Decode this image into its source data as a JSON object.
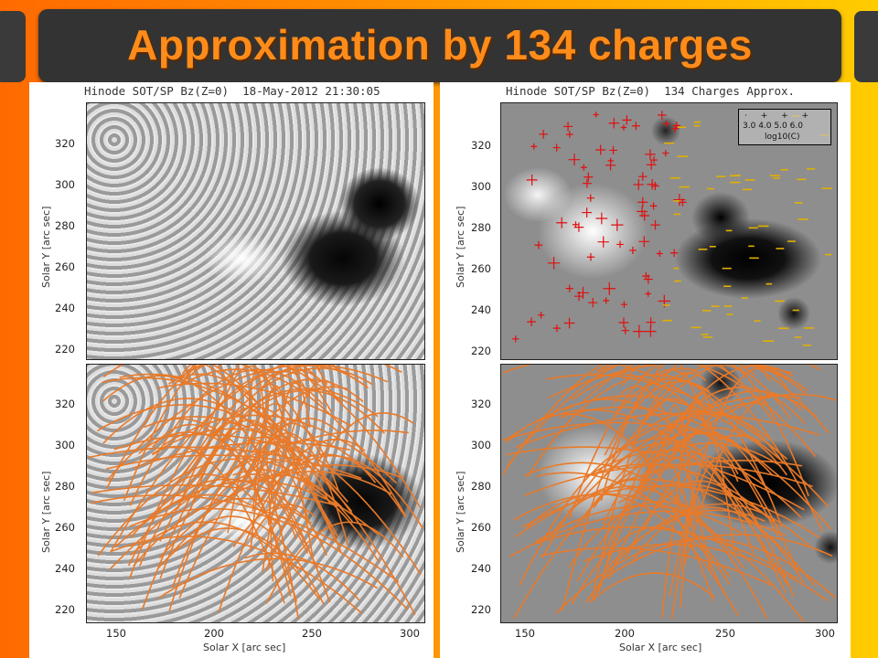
{
  "title": "Approximation by 134 charges",
  "left_header": "Hinode SOT/SP Bz(Z=0)  18-May-2012 21:30:05",
  "right_header": "Hinode SOT/SP Bz(Z=0)  134 Charges Approx.",
  "ylabel": "Solar Y [arc sec]",
  "xlabel": "Solar X [arc sec]",
  "y_ticks": [
    "320",
    "300",
    "280",
    "260",
    "240",
    "220"
  ],
  "x_ticks": [
    "150",
    "200",
    "250",
    "300"
  ],
  "legend": {
    "values": [
      "3.0",
      "4.0",
      "5.0",
      "6.0"
    ],
    "label": "log10(C)"
  },
  "colors": {
    "positive_charge": "#e01010",
    "negative_charge": "#e0b000",
    "field_lines": "#e87a2a",
    "title": "#ff8c1a"
  }
}
